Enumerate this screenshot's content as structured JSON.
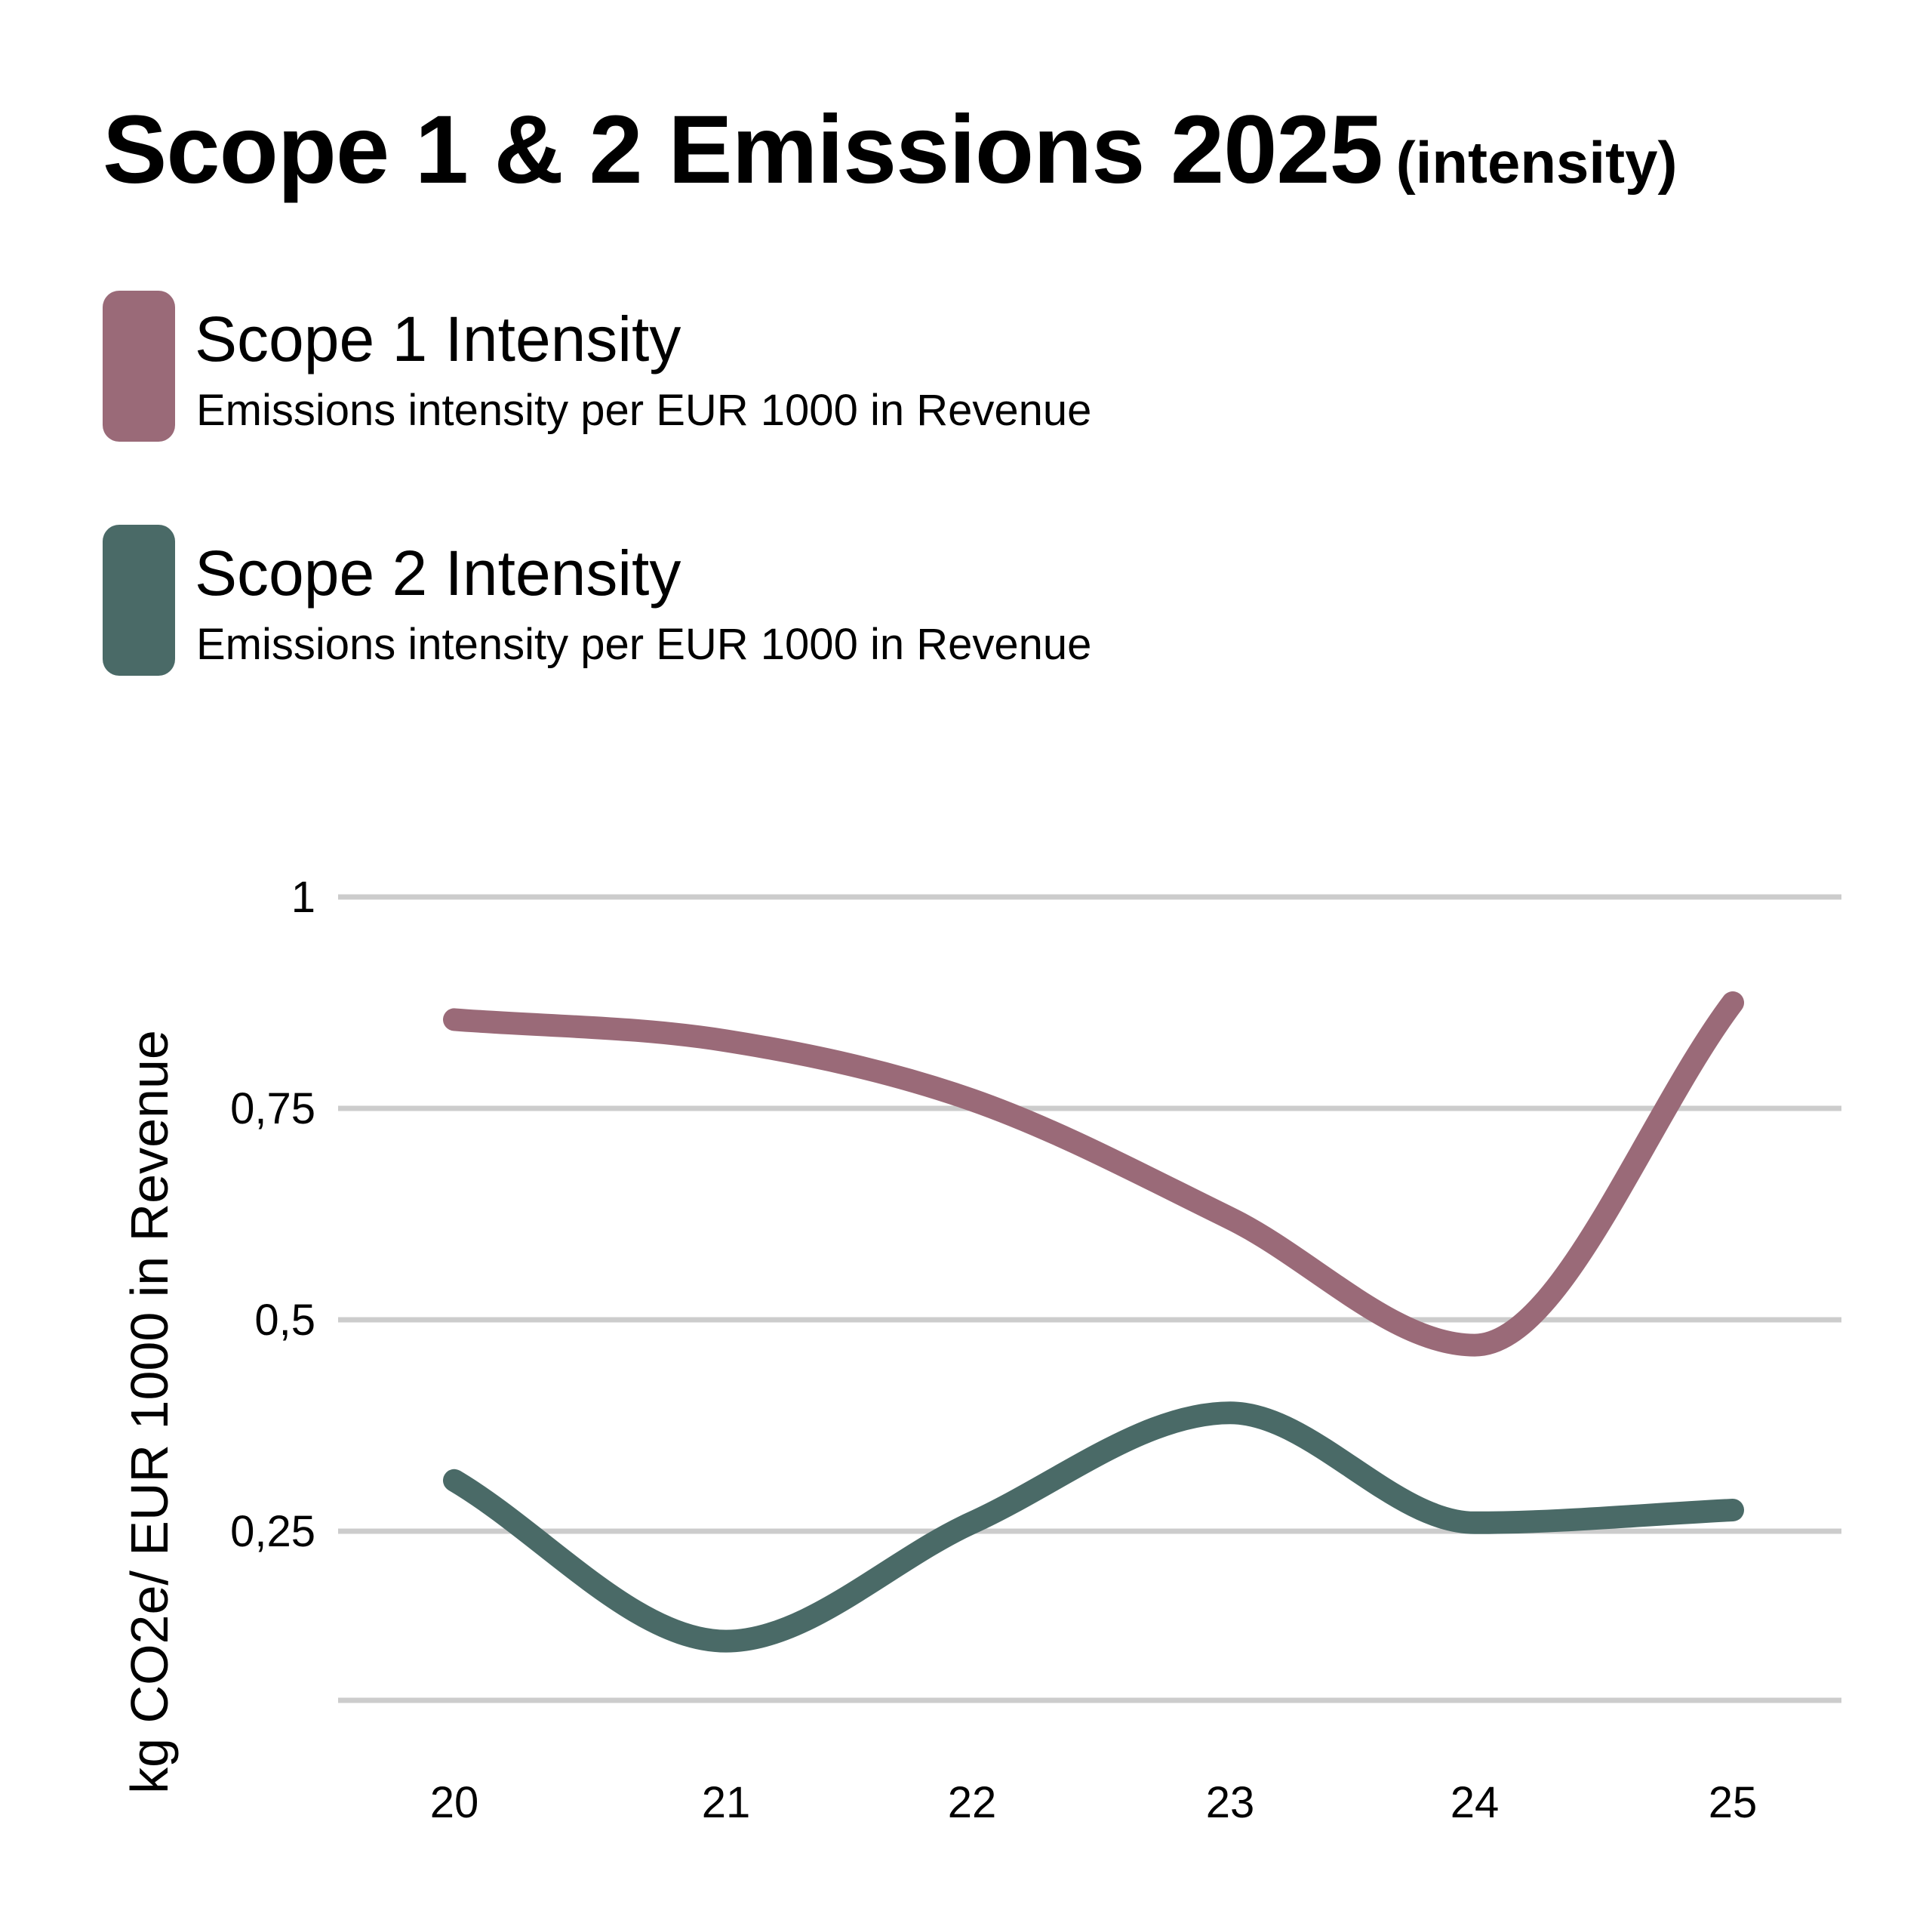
{
  "chart_data": {
    "type": "line",
    "title": "Scope 1 & 2 Emissions 2025",
    "subtitle": "(intensity)",
    "xlabel": "",
    "ylabel": "kg CO2e/ EUR 1000 in Revenue",
    "categories": [
      "20",
      "21",
      "22",
      "23",
      "24",
      "25"
    ],
    "y_ticks": [
      1,
      0.75,
      0.5,
      0.25
    ],
    "y_tick_labels": [
      "1",
      "0,75",
      "0,5",
      "0,25"
    ],
    "ylim": [
      0.05,
      1.0
    ],
    "grid": true,
    "legend_position": "top-left",
    "series": [
      {
        "name": "Scope 1 Intensity",
        "description": "Emissions intensity per EUR 1000 in Revenue",
        "color": "#9a6a78",
        "values": [
          0.855,
          0.83,
          0.76,
          0.62,
          0.47,
          0.875
        ]
      },
      {
        "name": "Scope 2 Intensity",
        "description": "Emissions intensity per EUR 1000 in Revenue",
        "color": "#4a6a67",
        "values": [
          0.31,
          0.12,
          0.26,
          0.39,
          0.26,
          0.275
        ]
      }
    ]
  }
}
